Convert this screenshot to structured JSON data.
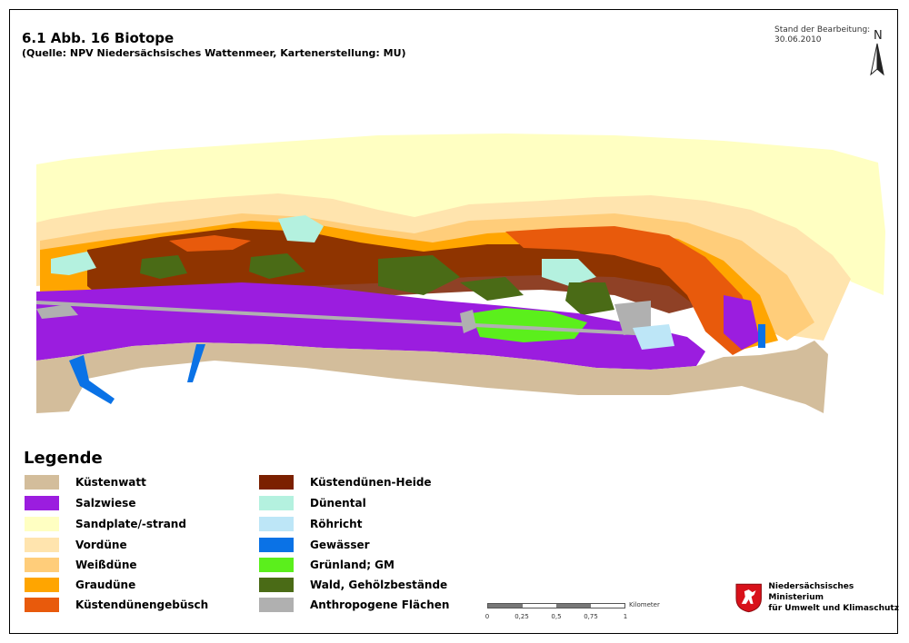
{
  "header": {
    "title": "6.1 Abb. 16 Biotope",
    "subtitle": "(Quelle: NPV Niedersächsisches Wattenmeer, Kartenerstellung: MU)",
    "stand_label": "Stand der Bearbeitung:",
    "stand_date": "30.06.2010",
    "north_label": "N"
  },
  "legend": {
    "title": "Legende",
    "left_items": [
      {
        "label": "Küstenwatt",
        "color": "#d3bd9b"
      },
      {
        "label": "Salzwiese",
        "color": "#9b1ddf"
      },
      {
        "label": "Sandplate/-strand",
        "color": "#ffffc2"
      },
      {
        "label": "Vordüne",
        "color": "#ffe4ae"
      },
      {
        "label": "Weißdüne",
        "color": "#ffcd7a"
      },
      {
        "label": "Graudüne",
        "color": "#ffa500"
      },
      {
        "label": "Küstendünengebüsch",
        "color": "#e85a0c"
      }
    ],
    "right_items": [
      {
        "label": "Küstendünen-Heide",
        "color": "#7b2000"
      },
      {
        "label": "Dünental",
        "color": "#b4f1df"
      },
      {
        "label": "Röhricht",
        "color": "#bde6f7"
      },
      {
        "label": "Gewässer",
        "color": "#0a72e6"
      },
      {
        "label": "Grünland; GM",
        "color": "#5bef1c"
      },
      {
        "label": "Wald, Gehölzbestände",
        "color": "#4a6b16"
      },
      {
        "label": "Anthropogene Flächen",
        "color": "#b0b0b0"
      }
    ]
  },
  "scale": {
    "ticks": [
      "0",
      "0,25",
      "0,5",
      "0,75",
      "1"
    ],
    "unit": "Kilometer"
  },
  "ministry": {
    "line1": "Niedersächsisches Ministerium",
    "line2": "für Umwelt und Klimaschutz"
  }
}
